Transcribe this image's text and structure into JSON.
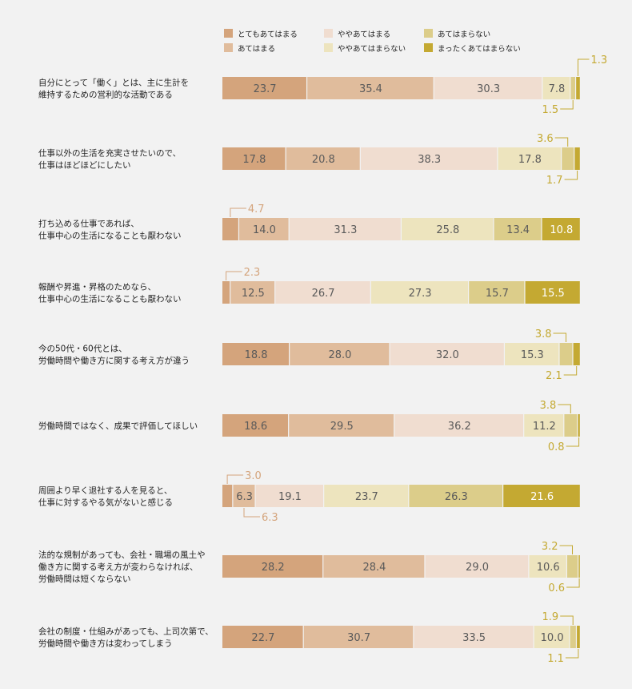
{
  "chart_data": {
    "type": "bar",
    "stacked": true,
    "orientation": "horizontal",
    "xlim": [
      0,
      100
    ],
    "grid": false,
    "legend_position": "top",
    "categories": [
      [
        "自分にとって「働く」とは、主に生計を",
        "維持するための営利的な活動である"
      ],
      [
        "仕事以外の生活を充実させたいので、",
        "仕事はほどほどにしたい"
      ],
      [
        "打ち込める仕事であれば、",
        "仕事中心の生活になることも厭わない"
      ],
      [
        "報酬や昇進・昇格のためなら、",
        "仕事中心の生活になることも厭わない"
      ],
      [
        "今の50代・60代とは、",
        "労働時間や働き方に関する考え方が違う"
      ],
      [
        "労働時間ではなく、成果で評価してほしい"
      ],
      [
        "周囲より早く退社する人を見ると、",
        "仕事に対するやる気がないと感じる"
      ],
      [
        "法的な規制があっても、会社・職場の風土や",
        "働き方に関する考え方が変わらなければ、",
        "労働時間は短くならない"
      ],
      [
        "会社の制度・仕組みがあっても、上司次第で、",
        "労働時間や働き方は変わってしまう"
      ]
    ],
    "series": [
      {
        "name": "とてもあてはまる",
        "color": "#d4a47c",
        "values": [
          23.7,
          17.8,
          4.7,
          2.3,
          18.8,
          18.6,
          3.0,
          28.2,
          22.7
        ]
      },
      {
        "name": "あてはまる",
        "color": "#e0bc9c",
        "values": [
          35.4,
          20.8,
          14.0,
          12.5,
          28.0,
          29.5,
          6.3,
          28.4,
          30.7
        ]
      },
      {
        "name": "ややあてはまる",
        "color": "#f0ddd0",
        "values": [
          30.3,
          38.3,
          31.3,
          26.7,
          32.0,
          36.2,
          19.1,
          29.0,
          33.5
        ]
      },
      {
        "name": "ややあてはまらない",
        "color": "#ede4be",
        "values": [
          7.8,
          17.8,
          25.8,
          27.3,
          15.3,
          11.2,
          23.7,
          10.6,
          10.0
        ]
      },
      {
        "name": "あてはまらない",
        "color": "#dccd8a",
        "values": [
          1.5,
          3.6,
          13.4,
          15.7,
          3.8,
          3.8,
          26.3,
          3.2,
          1.9
        ]
      },
      {
        "name": "まったくあてはまらない",
        "color": "#c4a932",
        "values": [
          1.3,
          1.7,
          10.8,
          15.5,
          2.1,
          0.8,
          21.6,
          0.6,
          1.1
        ]
      }
    ]
  },
  "colors": {
    "background": "#f2f2f2",
    "text": "#222222",
    "label_dark": "#5a5a5a",
    "callout_orange": "#d4a47c",
    "callout_gold": "#c4a932"
  }
}
